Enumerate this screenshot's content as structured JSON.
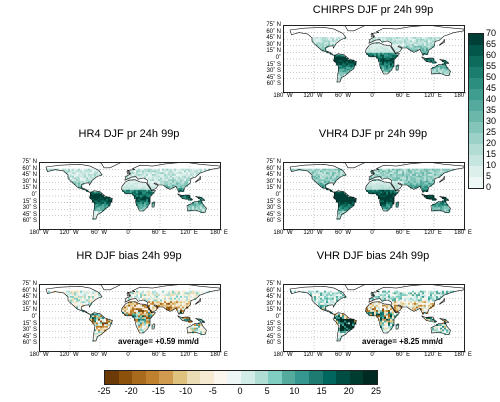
{
  "panels": [
    {
      "id": "chirps",
      "title": "CHIRPS DJF pr 24h 99p",
      "kind": "pr"
    },
    {
      "id": "hr4",
      "title": "HR4 DJF pr 24h 99p",
      "kind": "pr"
    },
    {
      "id": "vhr4",
      "title": "VHR4 DJF pr 24h 99p",
      "kind": "pr"
    },
    {
      "id": "hrbias",
      "title": "HR DJF bias 24h 99p",
      "kind": "bias",
      "average": "average= +0.59 mm/d"
    },
    {
      "id": "vhrbias",
      "title": "VHR DJF bias 24h 99p",
      "kind": "bias",
      "average": "average= +8.25 mm/d"
    }
  ],
  "lat_ticks": [
    "75˚ N",
    "60˚ N",
    "45˚ N",
    "30˚ N",
    "15˚ N",
    "0˚",
    "15˚ S",
    "30˚ S",
    "45˚ S",
    "60˚ S"
  ],
  "lon_ticks": [
    "180˚ W",
    "120˚ W",
    "60˚ W",
    "0˚",
    "60˚ E",
    "120˚ E",
    "180˚ E"
  ],
  "colorbar_pr": {
    "labels": [
      "70",
      "65",
      "60",
      "55",
      "50",
      "45",
      "40",
      "35",
      "30",
      "25",
      "20",
      "15",
      "10",
      "5",
      "0"
    ],
    "colors": [
      "#003f35",
      "#02574a",
      "#0d6b5c",
      "#1b7d6d",
      "#2b8e7e",
      "#3e9d8e",
      "#54ab9d",
      "#6bb8ab",
      "#83c5b9",
      "#9bd1c7",
      "#b2dcd4",
      "#c8e6e0",
      "#dcefeb",
      "#eef7f5"
    ]
  },
  "colorbar_bias": {
    "labels": [
      "-25",
      "-20",
      "-15",
      "-10",
      "-5",
      "0",
      "5",
      "10",
      "15",
      "20",
      "25"
    ],
    "colors": [
      "#6b3a06",
      "#8c510a",
      "#a86a1c",
      "#bf812d",
      "#d19b4f",
      "#dfc27d",
      "#eadcb4",
      "#f6ead2",
      "#fbf6ee",
      "#eef7f5",
      "#d2ece7",
      "#b0ddd4",
      "#80cdc1",
      "#54ab9d",
      "#35978f",
      "#1d7b72",
      "#01665e",
      "#004d44",
      "#003c30",
      "#002a22"
    ]
  },
  "chart_data": [
    {
      "type": "heatmap",
      "title": "CHIRPS DJF pr 24h 99p",
      "colorbar_range": [
        0,
        70
      ],
      "colorbar_ticks": [
        0,
        5,
        10,
        15,
        20,
        25,
        30,
        35,
        40,
        45,
        50,
        55,
        60,
        65,
        70
      ],
      "lon_range": [
        -180,
        180
      ],
      "lat_range": [
        -60,
        75
      ]
    },
    {
      "type": "heatmap",
      "title": "HR4 DJF pr 24h 99p",
      "colorbar_range": [
        0,
        70
      ],
      "lon_range": [
        -180,
        180
      ],
      "lat_range": [
        -60,
        75
      ]
    },
    {
      "type": "heatmap",
      "title": "VHR4 DJF pr 24h 99p",
      "colorbar_range": [
        0,
        70
      ],
      "lon_range": [
        -180,
        180
      ],
      "lat_range": [
        -60,
        75
      ]
    },
    {
      "type": "heatmap",
      "title": "HR DJF bias 24h 99p",
      "colorbar_range": [
        -25,
        25
      ],
      "colorbar_ticks": [
        -25,
        -20,
        -15,
        -10,
        -5,
        0,
        5,
        10,
        15,
        20,
        25
      ],
      "annotation": "average= +0.59 mm/d",
      "lon_range": [
        -180,
        180
      ],
      "lat_range": [
        -60,
        75
      ]
    },
    {
      "type": "heatmap",
      "title": "VHR DJF bias 24h 99p",
      "colorbar_range": [
        -25,
        25
      ],
      "annotation": "average= +8.25 mm/d",
      "lon_range": [
        -180,
        180
      ],
      "lat_range": [
        -60,
        75
      ]
    }
  ]
}
